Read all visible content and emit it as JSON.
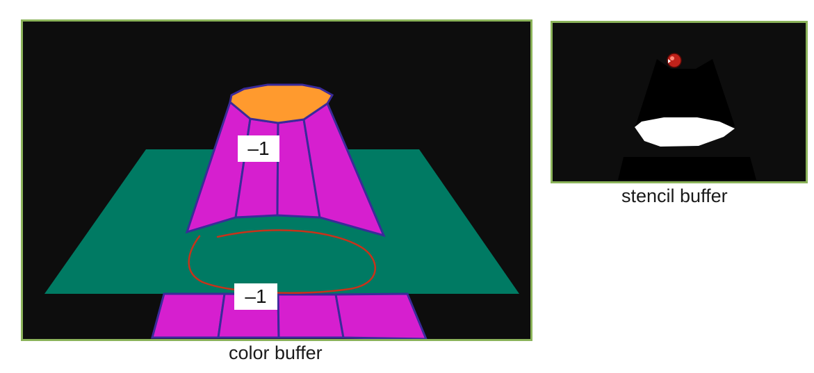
{
  "color_buffer": {
    "caption": "color buffer",
    "labels": {
      "upper": "–1",
      "lower": "–1"
    }
  },
  "stencil_buffer": {
    "caption": "stencil buffer"
  },
  "colors": {
    "background": "#0d0d0d",
    "panel_border": "#8bb35a",
    "ground_plane": "#007a63",
    "cylinder_side": "#d61fcf",
    "cylinder_outline": "#3a2a9a",
    "cylinder_top": "#ff9a2e",
    "annotation_stroke": "#c8321a",
    "stencil_shape": "#000000",
    "stencil_cap": "#ffffff",
    "cursor": "#c0221a"
  },
  "icons": {
    "cursor": "red-cursor-dot-icon"
  }
}
